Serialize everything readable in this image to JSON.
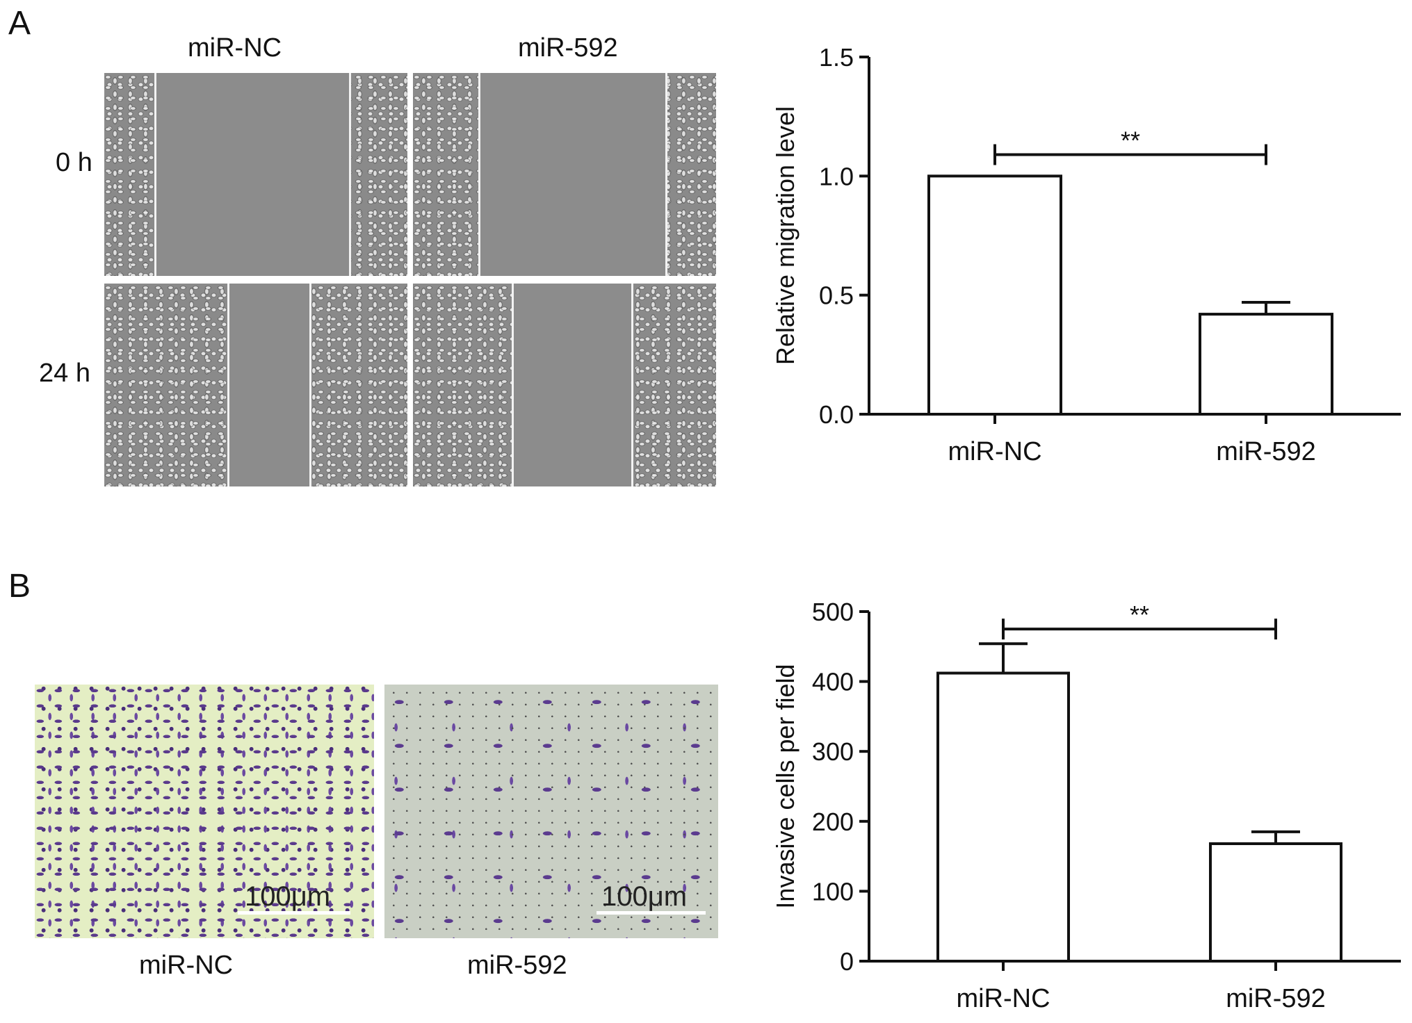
{
  "panel_a": {
    "letter": "A",
    "col_labels": [
      "miR-NC",
      "miR-592"
    ],
    "row_labels": [
      "0 h",
      "24 h"
    ]
  },
  "panel_b": {
    "letter": "B",
    "image_labels": [
      "miR-NC",
      "miR-592"
    ],
    "scale_bar": "100μm"
  },
  "chart_data": [
    {
      "type": "bar",
      "categories": [
        "miR-NC",
        "miR-592"
      ],
      "values": [
        1.0,
        0.42
      ],
      "errors": [
        0.0,
        0.05
      ],
      "ylabel": "Relative migration level",
      "ylim": [
        0,
        1.5
      ],
      "yticks": [
        0.0,
        0.5,
        1.0,
        1.5
      ],
      "ytick_labels": [
        "0.0",
        "0.5",
        "1.0",
        "1.5"
      ],
      "significance": "**",
      "significance_y": 1.09
    },
    {
      "type": "bar",
      "categories": [
        "miR-NC",
        "miR-592"
      ],
      "values": [
        412,
        168
      ],
      "errors": [
        42,
        17
      ],
      "ylabel": "Invasive  cells per field",
      "ylim": [
        0,
        500
      ],
      "yticks": [
        0,
        100,
        200,
        300,
        400,
        500
      ],
      "ytick_labels": [
        "0",
        "100",
        "200",
        "300",
        "400",
        "500"
      ],
      "significance": "**",
      "significance_y": 475
    }
  ]
}
